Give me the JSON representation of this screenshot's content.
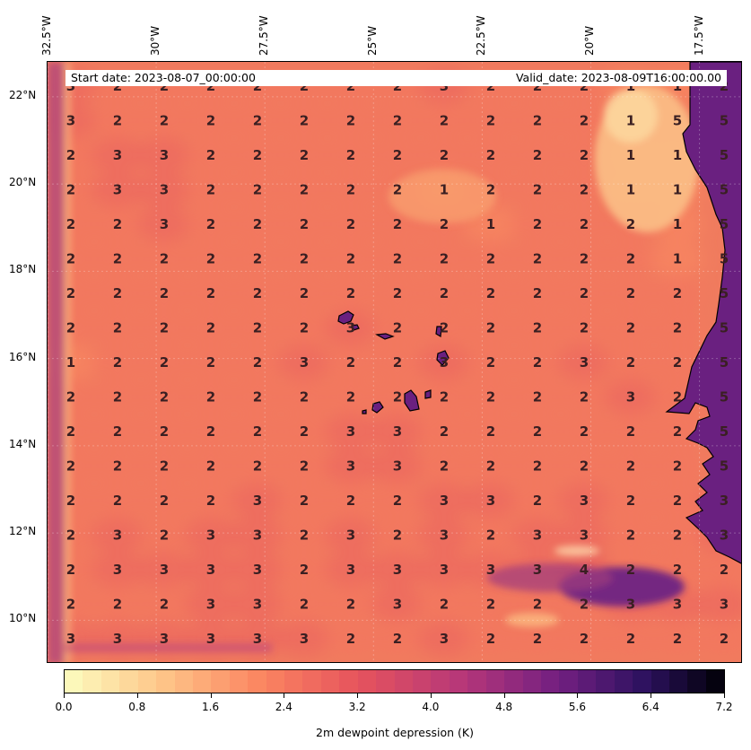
{
  "header": {
    "start_date": "Start date: 2023-08-07_00:00:00",
    "valid_date": "Valid_date: 2023-08-09T16:00:00.00"
  },
  "axes": {
    "lon_labels": [
      "32.5°W",
      "30°W",
      "27.5°W",
      "25°W",
      "22.5°W",
      "20°W",
      "17.5°W"
    ],
    "lat_labels": [
      "22°N",
      "20°N",
      "18°N",
      "16°N",
      "14°N",
      "12°N",
      "10°N"
    ]
  },
  "colors": {
    "ocean_base": "#f07b5e",
    "land": "#6a2080",
    "low_region": "#fbb37d",
    "high_region": "#6d2183",
    "value_text": "#3a1f22"
  },
  "chart_data": {
    "type": "heatmap",
    "variable": "2m dewpoint depression (K)",
    "extent": {
      "lon": [
        -32.5,
        -16.5
      ],
      "lat": [
        9.0,
        22.8
      ]
    },
    "grid": [
      [
        "3",
        "2",
        "2",
        "2",
        "2",
        "2",
        "2",
        "2",
        "3",
        "2",
        "2",
        "2",
        "1",
        "1",
        "2"
      ],
      [
        "3",
        "2",
        "2",
        "2",
        "2",
        "2",
        "2",
        "2",
        "2",
        "2",
        "2",
        "2",
        "1",
        "5",
        "5"
      ],
      [
        "2",
        "3",
        "3",
        "2",
        "2",
        "2",
        "2",
        "2",
        "2",
        "2",
        "2",
        "2",
        "1",
        "1",
        "5"
      ],
      [
        "2",
        "3",
        "3",
        "2",
        "2",
        "2",
        "2",
        "2",
        "1",
        "2",
        "2",
        "2",
        "1",
        "1",
        "5"
      ],
      [
        "2",
        "2",
        "3",
        "2",
        "2",
        "2",
        "2",
        "2",
        "2",
        "1",
        "2",
        "2",
        "2",
        "1",
        "5"
      ],
      [
        "2",
        "2",
        "2",
        "2",
        "2",
        "2",
        "2",
        "2",
        "2",
        "2",
        "2",
        "2",
        "2",
        "1",
        "5"
      ],
      [
        "2",
        "2",
        "2",
        "2",
        "2",
        "2",
        "2",
        "2",
        "2",
        "2",
        "2",
        "2",
        "2",
        "2",
        "5"
      ],
      [
        "2",
        "2",
        "2",
        "2",
        "2",
        "2",
        "3",
        "2",
        "2",
        "2",
        "2",
        "2",
        "2",
        "2",
        "5"
      ],
      [
        "1",
        "2",
        "2",
        "2",
        "2",
        "3",
        "2",
        "2",
        "3",
        "2",
        "2",
        "3",
        "2",
        "2",
        "5"
      ],
      [
        "2",
        "2",
        "2",
        "2",
        "2",
        "2",
        "2",
        "2",
        "2",
        "2",
        "2",
        "2",
        "3",
        "2",
        "5"
      ],
      [
        "2",
        "2",
        "2",
        "2",
        "2",
        "2",
        "3",
        "3",
        "2",
        "2",
        "2",
        "2",
        "2",
        "2",
        "5"
      ],
      [
        "2",
        "2",
        "2",
        "2",
        "2",
        "2",
        "3",
        "3",
        "2",
        "2",
        "2",
        "2",
        "2",
        "2",
        "5"
      ],
      [
        "2",
        "2",
        "2",
        "2",
        "3",
        "2",
        "2",
        "2",
        "3",
        "3",
        "2",
        "3",
        "2",
        "2",
        "3"
      ],
      [
        "2",
        "3",
        "2",
        "3",
        "3",
        "2",
        "3",
        "2",
        "3",
        "2",
        "3",
        "3",
        "2",
        "2",
        "3"
      ],
      [
        "2",
        "3",
        "3",
        "3",
        "3",
        "2",
        "3",
        "3",
        "3",
        "3",
        "3",
        "4",
        "2",
        "2",
        "2"
      ],
      [
        "2",
        "2",
        "2",
        "3",
        "3",
        "2",
        "2",
        "3",
        "2",
        "2",
        "2",
        "2",
        "3",
        "3",
        "3"
      ],
      [
        "3",
        "3",
        "3",
        "3",
        "3",
        "3",
        "2",
        "2",
        "3",
        "2",
        "2",
        "2",
        "2",
        "2",
        "2"
      ]
    ],
    "colorbar": {
      "label": "2m dewpoint depression (K)",
      "range": [
        0.0,
        7.2
      ],
      "ticks": [
        "0.0",
        "0.8",
        "1.6",
        "2.4",
        "3.2",
        "4.0",
        "4.8",
        "5.6",
        "6.4",
        "7.2"
      ],
      "colormap": "magma_r",
      "levels": 36
    }
  }
}
